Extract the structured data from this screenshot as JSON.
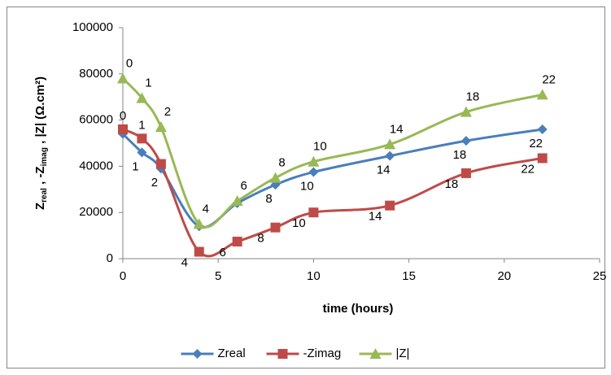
{
  "chart_data": {
    "type": "scatter-smooth",
    "x_label": "time (hours)",
    "y_label_parts": [
      "Z",
      "real",
      " , -Z",
      "imag",
      " , |Z| (Ω.cm²)"
    ],
    "x": [
      0,
      1,
      2,
      4,
      6,
      8,
      10,
      14,
      18,
      22
    ],
    "series": [
      {
        "name": "Zreal",
        "color": "#4a7ebb",
        "marker": "diamond",
        "values": [
          54000,
          46000,
          39000,
          14000,
          24000,
          32000,
          37500,
          44500,
          51000,
          56000
        ],
        "point_labels": [
          null,
          "1",
          "2",
          null,
          null,
          "8",
          "10",
          "14",
          "18",
          "22"
        ]
      },
      {
        "name": "-Zimag",
        "color": "#be4b48",
        "marker": "square",
        "values": [
          56000,
          52000,
          41000,
          3000,
          7400,
          13500,
          20000,
          23000,
          37000,
          43500
        ],
        "point_labels": [
          "0",
          "1",
          null,
          "4",
          "6",
          "8",
          "10",
          "14",
          "18",
          "22"
        ]
      },
      {
        "name": "|Z|",
        "color": "#98b954",
        "marker": "triangle",
        "values": [
          78000,
          69500,
          57000,
          15000,
          25000,
          35000,
          42000,
          49500,
          63500,
          71000
        ],
        "point_labels": [
          "0",
          "1",
          "2",
          "4",
          "6",
          "8",
          "10",
          "14",
          "18",
          "22"
        ]
      }
    ],
    "xlim": [
      0,
      25
    ],
    "xticks": [
      0,
      5,
      10,
      15,
      20,
      25
    ],
    "ylim": [
      0,
      100000
    ],
    "yticks": [
      0,
      20000,
      40000,
      60000,
      80000,
      100000
    ],
    "grid": false,
    "legend": "bottom"
  }
}
